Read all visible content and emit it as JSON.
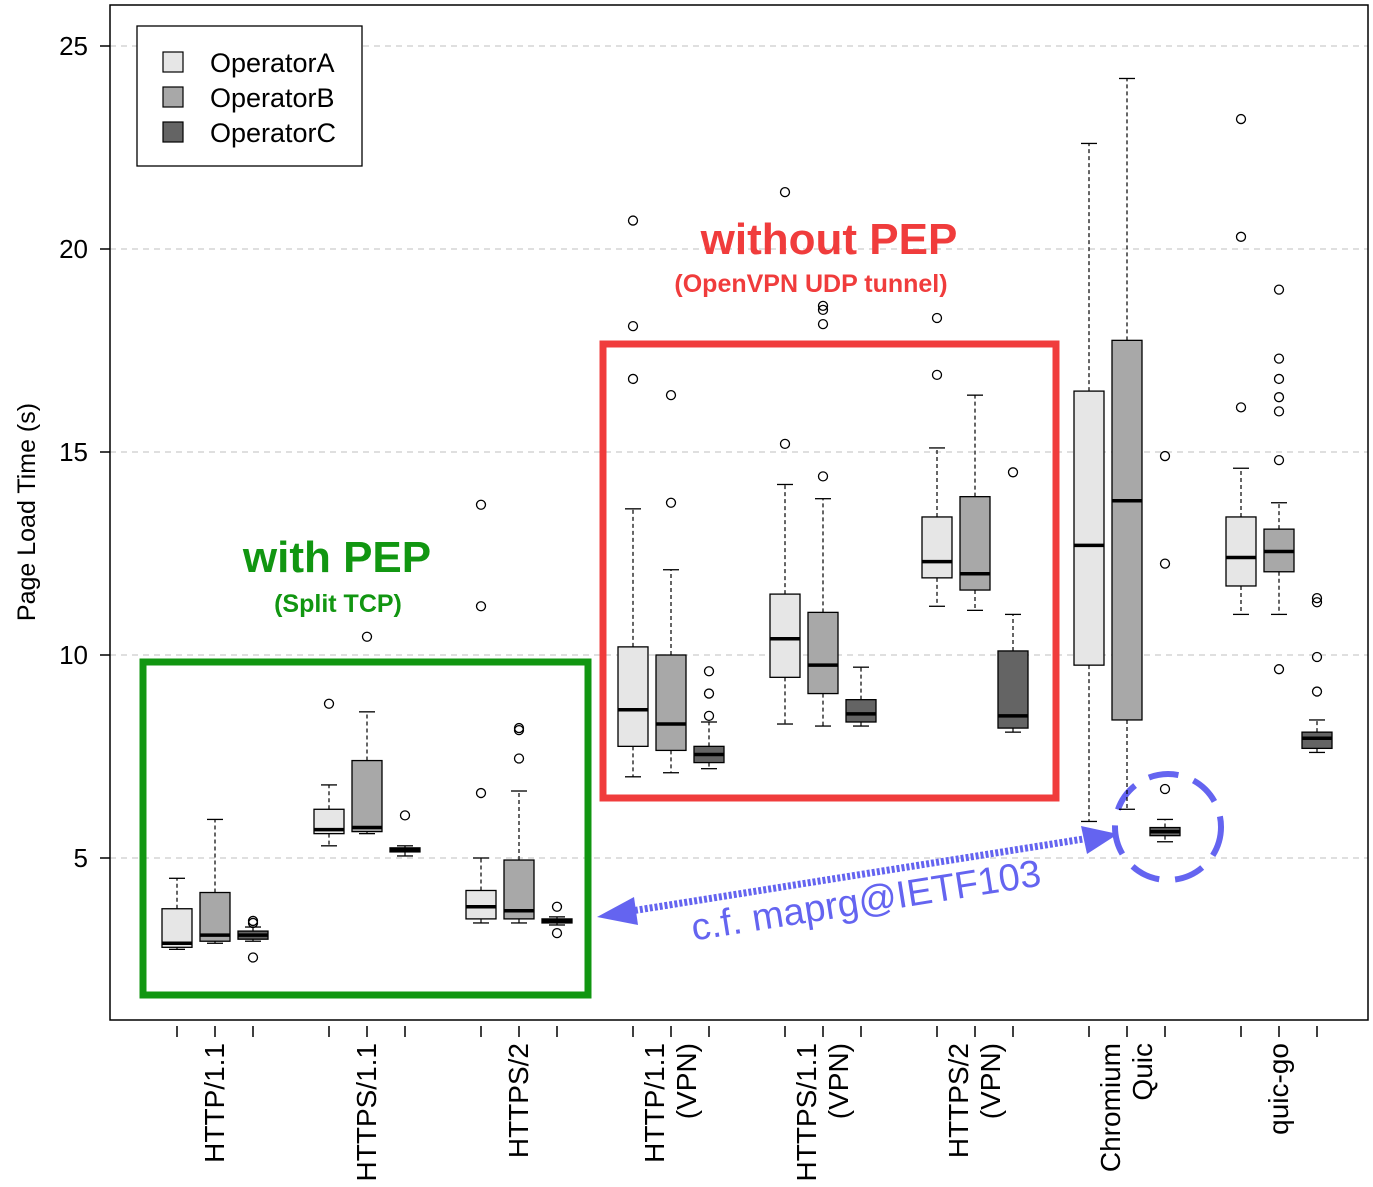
{
  "chart_data": {
    "type": "box",
    "ylabel": "Page Load Time (s)",
    "ylim": [
      1.0,
      26.0
    ],
    "yticks": [
      5,
      10,
      15,
      20,
      25
    ],
    "grid": "horizontal-dashed",
    "legend_position": "top-left",
    "groups": [
      {
        "label": "HTTP/1.1",
        "lines": [
          "HTTP/1.1"
        ]
      },
      {
        "label": "HTTPS/1.1",
        "lines": [
          "HTTPS/1.1"
        ]
      },
      {
        "label": "HTTPS/2",
        "lines": [
          "HTTPS/2"
        ]
      },
      {
        "label": "HTTP/1.1 (VPN)",
        "lines": [
          "HTTP/1.1",
          "(VPN)"
        ]
      },
      {
        "label": "HTTPS/1.1 (VPN)",
        "lines": [
          "HTTPS/1.1",
          "(VPN)"
        ]
      },
      {
        "label": "HTTPS/2 (VPN)",
        "lines": [
          "HTTPS/2",
          "(VPN)"
        ]
      },
      {
        "label": "Chromium Quic",
        "lines": [
          "Chromium",
          "Quic"
        ]
      },
      {
        "label": "quic-go",
        "lines": [
          "quic-go"
        ]
      }
    ],
    "series": [
      {
        "name": "OperatorA",
        "color": "#e6e6e6",
        "boxes": [
          {
            "whisker_low": 2.75,
            "q1": 2.8,
            "median": 2.9,
            "q3": 3.75,
            "whisker_high": 4.5,
            "outliers": []
          },
          {
            "whisker_low": 5.3,
            "q1": 5.6,
            "median": 5.7,
            "q3": 6.2,
            "whisker_high": 6.8,
            "outliers": [
              8.8
            ]
          },
          {
            "whisker_low": 3.4,
            "q1": 3.5,
            "median": 3.8,
            "q3": 4.2,
            "whisker_high": 5.0,
            "outliers": [
              6.6,
              11.2,
              13.7
            ]
          },
          {
            "whisker_low": 7.0,
            "q1": 7.75,
            "median": 8.65,
            "q3": 10.2,
            "whisker_high": 13.6,
            "outliers": [
              16.8,
              18.1,
              20.7
            ]
          },
          {
            "whisker_low": 8.3,
            "q1": 9.45,
            "median": 10.4,
            "q3": 11.5,
            "whisker_high": 14.2,
            "outliers": [
              15.2,
              21.4
            ]
          },
          {
            "whisker_low": 11.2,
            "q1": 11.9,
            "median": 12.3,
            "q3": 13.4,
            "whisker_high": 15.1,
            "outliers": [
              16.9,
              18.3
            ]
          },
          {
            "whisker_low": 5.9,
            "q1": 9.75,
            "median": 12.7,
            "q3": 16.5,
            "whisker_high": 22.6,
            "outliers": []
          },
          {
            "whisker_low": 11.0,
            "q1": 11.7,
            "median": 12.4,
            "q3": 13.4,
            "whisker_high": 14.6,
            "outliers": [
              16.1,
              20.3,
              23.2
            ]
          }
        ]
      },
      {
        "name": "OperatorB",
        "color": "#a8a8a8",
        "boxes": [
          {
            "whisker_low": 2.9,
            "q1": 2.95,
            "median": 3.1,
            "q3": 4.15,
            "whisker_high": 5.95,
            "outliers": []
          },
          {
            "whisker_low": 5.6,
            "q1": 5.65,
            "median": 5.75,
            "q3": 7.4,
            "whisker_high": 8.6,
            "outliers": [
              10.45
            ]
          },
          {
            "whisker_low": 3.4,
            "q1": 3.5,
            "median": 3.7,
            "q3": 4.95,
            "whisker_high": 6.65,
            "outliers": [
              7.45,
              8.15,
              8.2
            ]
          },
          {
            "whisker_low": 7.1,
            "q1": 7.65,
            "median": 8.3,
            "q3": 10.0,
            "whisker_high": 12.1,
            "outliers": [
              13.75,
              16.4
            ]
          },
          {
            "whisker_low": 8.25,
            "q1": 9.05,
            "median": 9.75,
            "q3": 11.05,
            "whisker_high": 13.85,
            "outliers": [
              14.4,
              18.15,
              18.5,
              18.6
            ]
          },
          {
            "whisker_low": 11.1,
            "q1": 11.6,
            "median": 12.0,
            "q3": 13.9,
            "whisker_high": 16.4,
            "outliers": []
          },
          {
            "whisker_low": 6.2,
            "q1": 8.4,
            "median": 13.8,
            "q3": 17.75,
            "whisker_high": 24.2,
            "outliers": []
          },
          {
            "whisker_low": 11.0,
            "q1": 12.05,
            "median": 12.55,
            "q3": 13.1,
            "whisker_high": 13.75,
            "outliers": [
              9.65,
              14.8,
              16.0,
              16.35,
              16.8,
              17.3,
              19.0
            ]
          }
        ]
      },
      {
        "name": "OperatorC",
        "color": "#646464",
        "boxes": [
          {
            "whisker_low": 2.95,
            "q1": 3.0,
            "median": 3.1,
            "q3": 3.2,
            "whisker_high": 3.3,
            "outliers": [
              2.55,
              3.4,
              3.45
            ]
          },
          {
            "whisker_low": 5.05,
            "q1": 5.15,
            "median": 5.2,
            "q3": 5.25,
            "whisker_high": 5.3,
            "outliers": [
              6.05
            ]
          },
          {
            "whisker_low": 3.35,
            "q1": 3.4,
            "median": 3.45,
            "q3": 3.5,
            "whisker_high": 3.55,
            "outliers": [
              3.15,
              3.8
            ]
          },
          {
            "whisker_low": 7.2,
            "q1": 7.35,
            "median": 7.55,
            "q3": 7.75,
            "whisker_high": 8.35,
            "outliers": [
              8.5,
              9.05,
              9.6
            ]
          },
          {
            "whisker_low": 8.25,
            "q1": 8.35,
            "median": 8.55,
            "q3": 8.9,
            "whisker_high": 9.7,
            "outliers": []
          },
          {
            "whisker_low": 8.1,
            "q1": 8.2,
            "median": 8.5,
            "q3": 10.1,
            "whisker_high": 11.0,
            "outliers": [
              14.5
            ]
          },
          {
            "whisker_low": 5.4,
            "q1": 5.55,
            "median": 5.65,
            "q3": 5.75,
            "whisker_high": 5.95,
            "outliers": [
              6.7,
              12.25,
              14.9
            ]
          },
          {
            "whisker_low": 7.6,
            "q1": 7.7,
            "median": 7.95,
            "q3": 8.1,
            "whisker_high": 8.4,
            "outliers": [
              9.1,
              9.95,
              11.3,
              11.4
            ]
          }
        ]
      }
    ],
    "annotations": [
      {
        "name": "with-pep",
        "title": "with PEP",
        "subtitle": "(Split TCP)",
        "color": "#119611"
      },
      {
        "name": "without-pep",
        "title": "without PEP",
        "subtitle": "(OpenVPN UDP tunnel)",
        "color": "#f03c3c"
      },
      {
        "name": "reference",
        "text": "c.f. maprg@IETF103",
        "color": "#6464f0"
      }
    ]
  }
}
